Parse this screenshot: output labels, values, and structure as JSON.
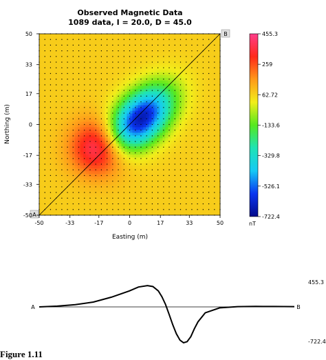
{
  "figure_caption": "Figure 1.11",
  "chart_data": [
    {
      "type": "heatmap",
      "title": "Observed Magnetic Data",
      "subtitle": "1089 data,  I = 20.0,  D = 45.0",
      "xlabel": "Easting (m)",
      "ylabel": "Northing (m)",
      "xlim": [
        -50,
        50
      ],
      "ylim": [
        -50,
        50
      ],
      "x_ticks": [
        "-50",
        "-33",
        "-17",
        "0",
        "17",
        "33",
        "50"
      ],
      "y_ticks": [
        "50",
        "33",
        "17",
        "0",
        "-17",
        "-33",
        "-50"
      ],
      "grid_points": 1089,
      "grid_size": [
        33,
        33
      ],
      "anomalies": [
        {
          "kind": "positive",
          "center": [
            -17,
            -13
          ],
          "peak": 455.3
        },
        {
          "kind": "negative",
          "center": [
            6,
            3
          ],
          "peak": -722.4
        }
      ],
      "profile_start": {
        "label": "A",
        "x": -50,
        "y": -50
      },
      "profile_end": {
        "label": "B",
        "x": 50,
        "y": 50
      },
      "colorbar": {
        "unit": "nT",
        "tick_labels": [
          "455.3",
          "259",
          "62.72",
          "-133.6",
          "-329.8",
          "-526.1",
          "-722.4"
        ],
        "colors": [
          "#ff3d8a",
          "#ff2a1a",
          "#ff9a1a",
          "#f2ee1a",
          "#55e81e",
          "#1fe3b5",
          "#16c9f5",
          "#0a35f0",
          "#030a8a"
        ]
      }
    },
    {
      "type": "line",
      "title": "",
      "start_label": "A",
      "end_label": "B",
      "y_range_labels": {
        "max": "455.3",
        "min": "-722.4"
      },
      "ylim": [
        -722.4,
        455.3
      ],
      "xlim": [
        0,
        141.4
      ],
      "x": [
        0,
        10,
        20,
        30,
        40,
        50,
        55,
        60,
        63,
        66,
        68,
        70,
        72,
        74,
        76,
        78,
        80,
        82,
        84,
        86,
        88,
        92,
        100,
        110,
        120,
        130,
        141.4
      ],
      "values": [
        0,
        15,
        45,
        100,
        200,
        330,
        410,
        440,
        420,
        330,
        210,
        50,
        -150,
        -360,
        -540,
        -670,
        -722,
        -700,
        -600,
        -440,
        -300,
        -120,
        -20,
        5,
        10,
        8,
        5
      ]
    }
  ]
}
